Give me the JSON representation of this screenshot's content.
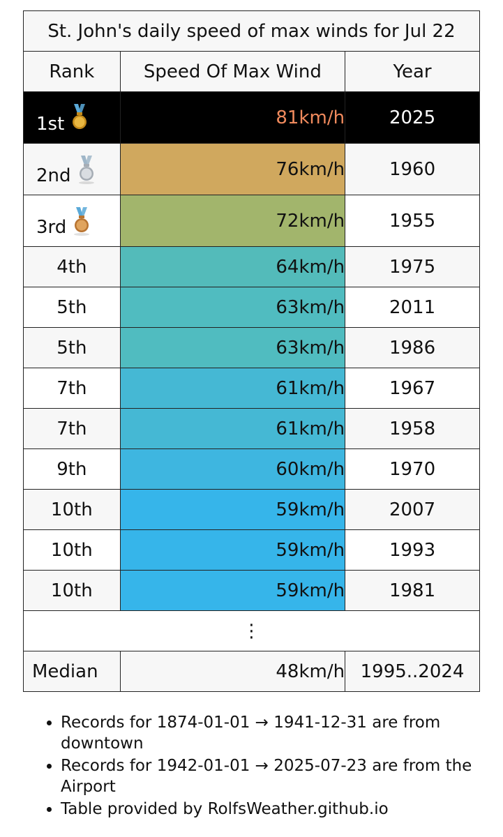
{
  "table": {
    "title": "St. John's daily speed of max winds for Jul 22",
    "headers": {
      "rank": "Rank",
      "speed": "Speed Of Max Wind",
      "year": "Year"
    },
    "rows": [
      {
        "rank": "1st",
        "medal": "gold-medal-icon",
        "speed": "81km/h",
        "year": "2025",
        "bg": "#000000"
      },
      {
        "rank": "2nd",
        "medal": "silver-medal-icon",
        "speed": "76km/h",
        "year": "1960",
        "bg": "#d0a85e"
      },
      {
        "rank": "3rd",
        "medal": "bronze-medal-icon",
        "speed": "72km/h",
        "year": "1955",
        "bg": "#a2b56c"
      },
      {
        "rank": "4th",
        "speed": "64km/h",
        "year": "1975",
        "bg": "#53bbba"
      },
      {
        "rank": "5th",
        "speed": "63km/h",
        "year": "2011",
        "bg": "#50bcc0"
      },
      {
        "rank": "5th",
        "speed": "63km/h",
        "year": "1986",
        "bg": "#50bcc0"
      },
      {
        "rank": "7th",
        "speed": "61km/h",
        "year": "1967",
        "bg": "#45b8d4"
      },
      {
        "rank": "7th",
        "speed": "61km/h",
        "year": "1958",
        "bg": "#45b8d4"
      },
      {
        "rank": "9th",
        "speed": "60km/h",
        "year": "1970",
        "bg": "#3eb6e0"
      },
      {
        "rank": "10th",
        "speed": "59km/h",
        "year": "2007",
        "bg": "#36b5ea"
      },
      {
        "rank": "10th",
        "speed": "59km/h",
        "year": "1993",
        "bg": "#36b5ea"
      },
      {
        "rank": "10th",
        "speed": "59km/h",
        "year": "1981",
        "bg": "#36b5ea"
      }
    ],
    "ellipsis": "⋮",
    "median": {
      "label": "Median",
      "speed": "48km/h",
      "years": "1995..2024"
    }
  },
  "notes": [
    "Records for 1874-01-01 → 1941-12-31 are from downtown",
    "Records for 1942-01-01 → 2025-07-23 are from the Airport",
    "Table provided by RolfsWeather.github.io"
  ]
}
